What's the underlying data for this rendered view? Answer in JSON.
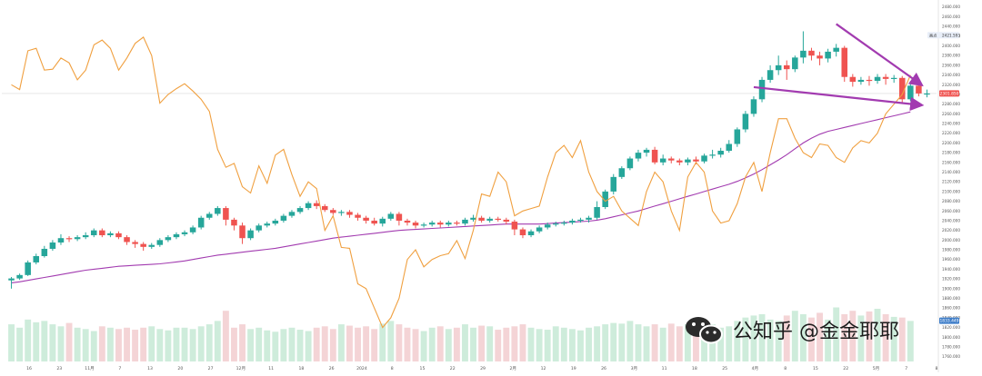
{
  "chart_data": {
    "type": "candlestick",
    "x_ticks": [
      "16",
      "23",
      "11月",
      "7",
      "13",
      "20",
      "27",
      "12月",
      "11",
      "18",
      "26",
      "2024",
      "8",
      "15",
      "22",
      "29",
      "2月",
      "12",
      "19",
      "26",
      "3月",
      "11",
      "18",
      "25",
      "4月",
      "8",
      "15",
      "22",
      "5月",
      "7",
      "8"
    ],
    "y_ticks": [
      1760,
      1780,
      1800,
      1820,
      1840,
      1860,
      1880,
      1900,
      1920,
      1940,
      1960,
      1980,
      2000,
      2020,
      2040,
      2060,
      2080,
      2100,
      2120,
      2140,
      2160,
      2180,
      2200,
      2220,
      2240,
      2260,
      2280,
      2300,
      2320,
      2340,
      2360,
      2380,
      2400,
      2420,
      2440,
      2460,
      2480
    ],
    "ylim": [
      1750,
      2487
    ],
    "price_tag": "2301.850",
    "symbol_tag": "2421.593",
    "symbol_label": "高点",
    "low_tag": "1833.449",
    "candles": [
      [
        1917,
        1921,
        1900,
        1924
      ],
      [
        1921,
        1928,
        1918,
        1931
      ],
      [
        1928,
        1954,
        1926,
        1958
      ],
      [
        1954,
        1967,
        1950,
        1972
      ],
      [
        1967,
        1982,
        1964,
        1988
      ],
      [
        1982,
        1995,
        1978,
        2000
      ],
      [
        1995,
        2004,
        1990,
        2012
      ],
      [
        2004,
        2002,
        1996,
        2008
      ],
      [
        2002,
        2006,
        1998,
        2010
      ],
      [
        2006,
        2010,
        2002,
        2016
      ],
      [
        2010,
        2020,
        2006,
        2024
      ],
      [
        2020,
        2010,
        2006,
        2024
      ],
      [
        2010,
        2014,
        2006,
        2018
      ],
      [
        2014,
        2006,
        2002,
        2018
      ],
      [
        2006,
        1996,
        1990,
        2010
      ],
      [
        1996,
        1992,
        1984,
        2000
      ],
      [
        1992,
        1986,
        1978,
        1996
      ],
      [
        1986,
        1990,
        1982,
        1994
      ],
      [
        1990,
        2000,
        1986,
        2004
      ],
      [
        2000,
        2006,
        1996,
        2010
      ],
      [
        2006,
        2012,
        2002,
        2016
      ],
      [
        2012,
        2016,
        2008,
        2020
      ],
      [
        2016,
        2026,
        2012,
        2030
      ],
      [
        2026,
        2046,
        2022,
        2050
      ],
      [
        2046,
        2054,
        2042,
        2058
      ],
      [
        2054,
        2066,
        2050,
        2070
      ],
      [
        2066,
        2042,
        2030,
        2070
      ],
      [
        2042,
        2030,
        2020,
        2046
      ],
      [
        2030,
        2004,
        1992,
        2036
      ],
      [
        2004,
        2020,
        2000,
        2024
      ],
      [
        2020,
        2030,
        2016,
        2034
      ],
      [
        2030,
        2034,
        2026,
        2038
      ],
      [
        2034,
        2040,
        2030,
        2044
      ],
      [
        2040,
        2050,
        2036,
        2054
      ],
      [
        2050,
        2058,
        2046,
        2062
      ],
      [
        2058,
        2066,
        2054,
        2070
      ],
      [
        2066,
        2076,
        2062,
        2080
      ],
      [
        2076,
        2070,
        2064,
        2082
      ],
      [
        2070,
        2062,
        2058,
        2074
      ],
      [
        2062,
        2056,
        2052,
        2066
      ],
      [
        2056,
        2058,
        2050,
        2062
      ],
      [
        2058,
        2052,
        2046,
        2062
      ],
      [
        2052,
        2046,
        2040,
        2056
      ],
      [
        2046,
        2040,
        2034,
        2050
      ],
      [
        2040,
        2034,
        2030,
        2046
      ],
      [
        2034,
        2044,
        2028,
        2048
      ],
      [
        2044,
        2054,
        2040,
        2058
      ],
      [
        2054,
        2040,
        2030,
        2058
      ],
      [
        2040,
        2036,
        2030,
        2044
      ],
      [
        2036,
        2030,
        2024,
        2040
      ],
      [
        2030,
        2032,
        2026,
        2036
      ],
      [
        2032,
        2036,
        2028,
        2040
      ],
      [
        2036,
        2032,
        2026,
        2040
      ],
      [
        2032,
        2036,
        2028,
        2040
      ],
      [
        2036,
        2034,
        2030,
        2040
      ],
      [
        2034,
        2042,
        2030,
        2046
      ],
      [
        2042,
        2046,
        2038,
        2052
      ],
      [
        2046,
        2040,
        2036,
        2050
      ],
      [
        2040,
        2044,
        2036,
        2048
      ],
      [
        2044,
        2042,
        2038,
        2048
      ],
      [
        2042,
        2038,
        2032,
        2046
      ],
      [
        2038,
        2022,
        2010,
        2042
      ],
      [
        2022,
        2010,
        2004,
        2026
      ],
      [
        2010,
        2018,
        2006,
        2022
      ],
      [
        2018,
        2026,
        2014,
        2030
      ],
      [
        2026,
        2032,
        2022,
        2036
      ],
      [
        2032,
        2034,
        2028,
        2038
      ],
      [
        2034,
        2036,
        2030,
        2040
      ],
      [
        2036,
        2040,
        2032,
        2044
      ],
      [
        2040,
        2042,
        2036,
        2046
      ],
      [
        2042,
        2046,
        2036,
        2050
      ],
      [
        2046,
        2068,
        2042,
        2080
      ],
      [
        2068,
        2100,
        2064,
        2104
      ],
      [
        2100,
        2130,
        2094,
        2136
      ],
      [
        2130,
        2148,
        2126,
        2152
      ],
      [
        2148,
        2168,
        2144,
        2172
      ],
      [
        2168,
        2180,
        2162,
        2186
      ],
      [
        2180,
        2186,
        2172,
        2190
      ],
      [
        2186,
        2160,
        2156,
        2192
      ],
      [
        2160,
        2168,
        2154,
        2176
      ],
      [
        2168,
        2164,
        2158,
        2172
      ],
      [
        2164,
        2160,
        2154,
        2168
      ],
      [
        2160,
        2166,
        2154,
        2170
      ],
      [
        2166,
        2162,
        2156,
        2172
      ],
      [
        2162,
        2174,
        2158,
        2178
      ],
      [
        2174,
        2176,
        2168,
        2186
      ],
      [
        2176,
        2184,
        2170,
        2190
      ],
      [
        2184,
        2198,
        2180,
        2206
      ],
      [
        2198,
        2228,
        2192,
        2232
      ],
      [
        2228,
        2260,
        2222,
        2266
      ],
      [
        2260,
        2290,
        2254,
        2296
      ],
      [
        2290,
        2330,
        2284,
        2336
      ],
      [
        2330,
        2350,
        2324,
        2360
      ],
      [
        2350,
        2360,
        2340,
        2380
      ],
      [
        2360,
        2352,
        2330,
        2370
      ],
      [
        2352,
        2376,
        2346,
        2380
      ],
      [
        2376,
        2390,
        2364,
        2430
      ],
      [
        2390,
        2380,
        2370,
        2396
      ],
      [
        2380,
        2374,
        2360,
        2388
      ],
      [
        2374,
        2388,
        2366,
        2394
      ],
      [
        2388,
        2396,
        2378,
        2404
      ],
      [
        2396,
        2336,
        2326,
        2400
      ],
      [
        2336,
        2326,
        2316,
        2342
      ],
      [
        2326,
        2330,
        2320,
        2336
      ],
      [
        2330,
        2328,
        2318,
        2338
      ],
      [
        2328,
        2336,
        2322,
        2342
      ],
      [
        2336,
        2332,
        2320,
        2342
      ],
      [
        2332,
        2334,
        2324,
        2340
      ],
      [
        2334,
        2290,
        2282,
        2338
      ],
      [
        2290,
        2318,
        2286,
        2324
      ],
      [
        2318,
        2302,
        2296,
        2322
      ],
      [
        2302,
        2302,
        2294,
        2310
      ]
    ],
    "moving_average": [
      1912,
      1914,
      1917,
      1920,
      1923,
      1926,
      1929,
      1932,
      1935,
      1938,
      1940,
      1942,
      1944,
      1946,
      1947,
      1948,
      1949,
      1950,
      1951,
      1953,
      1955,
      1957,
      1960,
      1963,
      1966,
      1969,
      1971,
      1973,
      1975,
      1977,
      1979,
      1981,
      1983,
      1986,
      1989,
      1992,
      1995,
      1998,
      2001,
      2004,
      2006,
      2008,
      2010,
      2012,
      2014,
      2016,
      2018,
      2020,
      2021,
      2022,
      2023,
      2024,
      2025,
      2026,
      2027,
      2028,
      2029,
      2030,
      2031,
      2032,
      2033,
      2033,
      2033,
      2033,
      2033,
      2034,
      2035,
      2036,
      2037,
      2038,
      2039,
      2041,
      2044,
      2048,
      2052,
      2056,
      2060,
      2065,
      2070,
      2075,
      2080,
      2085,
      2090,
      2095,
      2100,
      2105,
      2110,
      2115,
      2121,
      2128,
      2136,
      2145,
      2155,
      2165,
      2176,
      2188,
      2200,
      2210,
      2218,
      2224,
      2228,
      2232,
      2236,
      2240,
      2244,
      2248,
      2252,
      2256,
      2260,
      2264
    ],
    "oscillator_line": [
      2320,
      2310,
      2390,
      2395,
      2350,
      2352,
      2375,
      2365,
      2330,
      2350,
      2402,
      2412,
      2395,
      2350,
      2375,
      2405,
      2418,
      2380,
      2282,
      2300,
      2312,
      2322,
      2307,
      2290,
      2265,
      2187,
      2150,
      2158,
      2110,
      2097,
      2153,
      2117,
      2175,
      2187,
      2135,
      2090,
      2120,
      2106,
      2020,
      2050,
      1985,
      1983,
      1910,
      1900,
      1860,
      1820,
      1840,
      1880,
      1960,
      1980,
      1945,
      1960,
      1968,
      1972,
      1999,
      1962,
      2020,
      2095,
      2090,
      2140,
      2120,
      2050,
      2060,
      2065,
      2070,
      2130,
      2180,
      2195,
      2170,
      2205,
      2140,
      2100,
      2080,
      2090,
      2060,
      2045,
      2030,
      2100,
      2140,
      2120,
      2060,
      2020,
      2130,
      2160,
      2140,
      2060,
      2035,
      2040,
      2075,
      2130,
      2160,
      2100,
      2180,
      2250,
      2250,
      2210,
      2180,
      2170,
      2198,
      2195,
      2170,
      2160,
      2190,
      2205,
      2200,
      2220,
      2260,
      2280,
      2300,
      2340
    ],
    "volumes": [
      0.55,
      0.5,
      0.62,
      0.58,
      0.6,
      0.55,
      0.52,
      0.57,
      0.5,
      0.48,
      0.45,
      0.52,
      0.5,
      0.48,
      0.5,
      0.47,
      0.5,
      0.52,
      0.48,
      0.46,
      0.5,
      0.5,
      0.48,
      0.52,
      0.55,
      0.6,
      0.75,
      0.5,
      0.55,
      0.48,
      0.5,
      0.46,
      0.44,
      0.48,
      0.5,
      0.47,
      0.45,
      0.5,
      0.52,
      0.48,
      0.55,
      0.53,
      0.5,
      0.52,
      0.48,
      0.56,
      0.6,
      0.55,
      0.5,
      0.48,
      0.45,
      0.5,
      0.52,
      0.48,
      0.5,
      0.55,
      0.5,
      0.53,
      0.52,
      0.47,
      0.5,
      0.52,
      0.55,
      0.5,
      0.48,
      0.47,
      0.52,
      0.5,
      0.48,
      0.46,
      0.5,
      0.52,
      0.55,
      0.57,
      0.56,
      0.6,
      0.55,
      0.52,
      0.55,
      0.5,
      0.56,
      0.52,
      0.55,
      0.62,
      0.58,
      0.55,
      0.5,
      0.52,
      0.6,
      0.65,
      0.68,
      0.7,
      0.62,
      0.6,
      0.68,
      0.75,
      0.7,
      0.65,
      0.72,
      0.62,
      0.8,
      0.7,
      0.75,
      0.68,
      0.74,
      0.78,
      0.7,
      0.66,
      0.65,
      0.6
    ],
    "trend_lines": [
      {
        "from": [
          100,
          2445
        ],
        "to": [
          109,
          2320
        ]
      },
      {
        "from": [
          90,
          2315
        ],
        "to": [
          109,
          2278
        ]
      }
    ]
  }
}
